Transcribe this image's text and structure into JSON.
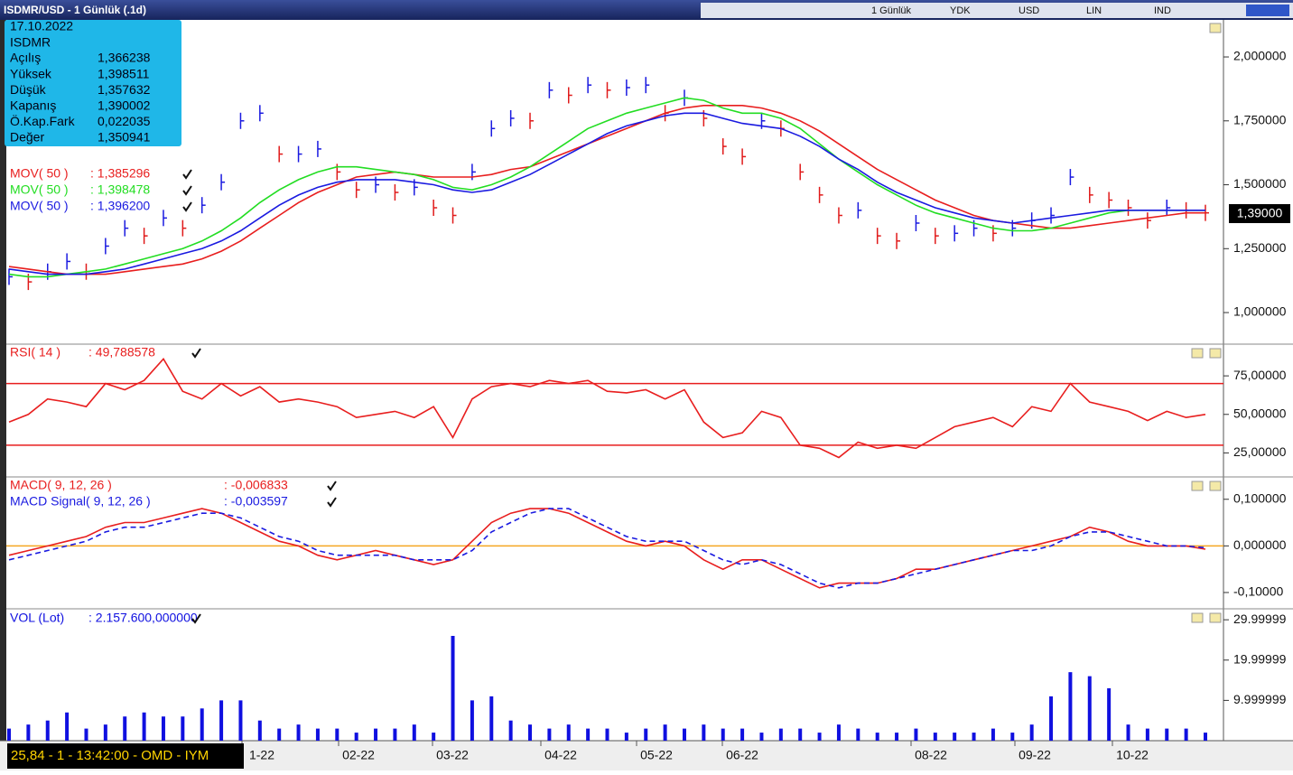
{
  "header": {
    "title": "ISDMR/USD - 1 Günlük (.1d)",
    "toolbar": [
      "1 Günlük",
      "YDK",
      "USD",
      "LIN",
      "IND"
    ]
  },
  "info": {
    "date": "17.10.2022",
    "symbol": "ISDMR",
    "rows": [
      [
        "Açılış",
        "1,366238"
      ],
      [
        "Yüksek",
        "1,398511"
      ],
      [
        "Düşük",
        "1,357632"
      ],
      [
        "Kapanış",
        "1,390002"
      ],
      [
        "Ö.Kap.Fark",
        "0,022035"
      ],
      [
        "Değer",
        "1,350941"
      ]
    ]
  },
  "last_price": "1,39000",
  "status": "25,84 - 1 - 13:42:00 - OMD - IYM",
  "x_labels": [
    "1-22",
    "02-22",
    "03-22",
    "04-22",
    "05-22",
    "06-22",
    "08-22",
    "09-22",
    "10-22"
  ],
  "chart_data": [
    {
      "type": "line",
      "ylim": [
        0.88,
        2.145
      ],
      "yticks": [
        {
          "value": 1,
          "label": "1,000000"
        },
        {
          "value": 1.25,
          "label": "1,250000"
        },
        {
          "value": 1.5,
          "label": "1,500000"
        },
        {
          "value": 1.75,
          "label": "1,750000"
        },
        {
          "value": 2,
          "label": "2,000000"
        }
      ],
      "up_color": "#1a1ae0",
      "down_color": "#e01a1a",
      "series": [
        {
          "style": "bars",
          "values": [
            1.14,
            1.12,
            1.16,
            1.2,
            1.16,
            1.26,
            1.33,
            1.3,
            1.37,
            1.33,
            1.42,
            1.51,
            1.75,
            1.78,
            1.62,
            1.62,
            1.64,
            1.55,
            1.48,
            1.5,
            1.47,
            1.49,
            1.41,
            1.38,
            1.55,
            1.72,
            1.76,
            1.75,
            1.87,
            1.85,
            1.89,
            1.87,
            1.88,
            1.89,
            1.78,
            1.84,
            1.76,
            1.65,
            1.61,
            1.75,
            1.72,
            1.55,
            1.46,
            1.38,
            1.4,
            1.3,
            1.28,
            1.35,
            1.3,
            1.31,
            1.33,
            1.31,
            1.33,
            1.36,
            1.38,
            1.53,
            1.46,
            1.44,
            1.41,
            1.36,
            1.41,
            1.4,
            1.39
          ]
        },
        {
          "name": "MOV( 50 )",
          "legend_value": ": 1,385296",
          "color": "#e81e1e",
          "values": [
            1.18,
            1.17,
            1.16,
            1.15,
            1.15,
            1.15,
            1.16,
            1.17,
            1.18,
            1.19,
            1.21,
            1.24,
            1.28,
            1.33,
            1.38,
            1.43,
            1.47,
            1.5,
            1.53,
            1.54,
            1.55,
            1.54,
            1.53,
            1.53,
            1.53,
            1.54,
            1.56,
            1.57,
            1.6,
            1.63,
            1.66,
            1.69,
            1.72,
            1.75,
            1.78,
            1.8,
            1.81,
            1.81,
            1.81,
            1.8,
            1.78,
            1.75,
            1.71,
            1.66,
            1.61,
            1.56,
            1.52,
            1.48,
            1.44,
            1.41,
            1.38,
            1.36,
            1.35,
            1.34,
            1.33,
            1.33,
            1.34,
            1.35,
            1.36,
            1.37,
            1.38,
            1.39,
            1.39
          ]
        },
        {
          "name": "MOV( 50 )",
          "legend_value": ": 1,398478",
          "color": "#22dd22",
          "values": [
            1.15,
            1.14,
            1.14,
            1.15,
            1.16,
            1.17,
            1.19,
            1.21,
            1.23,
            1.25,
            1.28,
            1.32,
            1.37,
            1.43,
            1.48,
            1.52,
            1.55,
            1.57,
            1.57,
            1.56,
            1.55,
            1.54,
            1.52,
            1.49,
            1.48,
            1.5,
            1.53,
            1.57,
            1.62,
            1.67,
            1.72,
            1.75,
            1.78,
            1.8,
            1.82,
            1.84,
            1.83,
            1.8,
            1.78,
            1.78,
            1.76,
            1.72,
            1.66,
            1.6,
            1.55,
            1.5,
            1.46,
            1.42,
            1.39,
            1.37,
            1.35,
            1.33,
            1.32,
            1.32,
            1.33,
            1.35,
            1.37,
            1.39,
            1.4,
            1.4,
            1.4,
            1.4,
            1.4
          ]
        },
        {
          "name": "MOV( 50 )",
          "legend_value": ": 1,396200",
          "color": "#1a1ae0",
          "values": [
            1.17,
            1.16,
            1.15,
            1.15,
            1.15,
            1.16,
            1.17,
            1.19,
            1.21,
            1.23,
            1.25,
            1.28,
            1.32,
            1.37,
            1.42,
            1.46,
            1.49,
            1.51,
            1.52,
            1.52,
            1.52,
            1.51,
            1.5,
            1.48,
            1.47,
            1.48,
            1.51,
            1.54,
            1.58,
            1.62,
            1.66,
            1.7,
            1.73,
            1.75,
            1.77,
            1.78,
            1.78,
            1.76,
            1.74,
            1.73,
            1.72,
            1.69,
            1.65,
            1.6,
            1.56,
            1.51,
            1.47,
            1.44,
            1.41,
            1.39,
            1.37,
            1.36,
            1.35,
            1.36,
            1.37,
            1.38,
            1.39,
            1.4,
            1.4,
            1.4,
            1.4,
            1.4,
            1.4
          ]
        }
      ]
    },
    {
      "type": "line",
      "ylim": [
        10,
        95
      ],
      "yticks": [
        {
          "value": 25,
          "label": "25,00000"
        },
        {
          "value": 50,
          "label": "50,00000"
        },
        {
          "value": 75,
          "label": "75,00000"
        }
      ],
      "hlines": [
        70,
        30
      ],
      "hline_color": "#e81e1e",
      "series": [
        {
          "name": "RSI( 14 )",
          "legend_value": ": 49,788578",
          "color": "#e81e1e",
          "values": [
            45,
            50,
            60,
            58,
            55,
            70,
            66,
            72,
            86,
            65,
            60,
            70,
            62,
            68,
            58,
            60,
            58,
            55,
            48,
            50,
            52,
            48,
            55,
            35,
            60,
            68,
            70,
            68,
            72,
            70,
            72,
            65,
            64,
            66,
            60,
            66,
            45,
            35,
            38,
            52,
            48,
            30,
            28,
            22,
            32,
            28,
            30,
            28,
            35,
            42,
            45,
            48,
            42,
            55,
            52,
            70,
            58,
            55,
            52,
            46,
            52,
            48,
            50
          ]
        }
      ]
    },
    {
      "type": "line",
      "ylim": [
        -0.133,
        0.146
      ],
      "yticks": [
        {
          "value": -0.1,
          "label": "-0,10000"
        },
        {
          "value": 0,
          "label": "0,000000"
        },
        {
          "value": 0.1,
          "label": "0,100000"
        }
      ],
      "hlines": [
        0
      ],
      "hline_color": "#f5a623",
      "series": [
        {
          "name": "MACD( 9, 12, 26 )",
          "legend_value": ": -0,006833",
          "color": "#e81e1e",
          "values": [
            -0.02,
            -0.01,
            0.0,
            0.01,
            0.02,
            0.04,
            0.05,
            0.05,
            0.06,
            0.07,
            0.08,
            0.07,
            0.05,
            0.03,
            0.01,
            0.0,
            -0.02,
            -0.03,
            -0.02,
            -0.01,
            -0.02,
            -0.03,
            -0.04,
            -0.03,
            0.01,
            0.05,
            0.07,
            0.08,
            0.08,
            0.07,
            0.05,
            0.03,
            0.01,
            0.0,
            0.01,
            0.0,
            -0.03,
            -0.05,
            -0.03,
            -0.03,
            -0.05,
            -0.07,
            -0.09,
            -0.08,
            -0.08,
            -0.08,
            -0.07,
            -0.05,
            -0.05,
            -0.04,
            -0.03,
            -0.02,
            -0.01,
            0.0,
            0.01,
            0.02,
            0.04,
            0.03,
            0.01,
            0.0,
            0.0,
            0.0,
            -0.007
          ]
        },
        {
          "name": "MACD Signal( 9, 12, 26 )",
          "legend_value": ": -0,003597",
          "color": "#1a1ae0",
          "dashed": true,
          "values": [
            -0.03,
            -0.02,
            -0.01,
            0.0,
            0.01,
            0.03,
            0.04,
            0.04,
            0.05,
            0.06,
            0.07,
            0.07,
            0.06,
            0.04,
            0.02,
            0.01,
            -0.01,
            -0.02,
            -0.02,
            -0.02,
            -0.02,
            -0.03,
            -0.03,
            -0.03,
            -0.01,
            0.03,
            0.05,
            0.07,
            0.08,
            0.08,
            0.06,
            0.04,
            0.02,
            0.01,
            0.01,
            0.01,
            -0.01,
            -0.03,
            -0.04,
            -0.03,
            -0.04,
            -0.06,
            -0.08,
            -0.09,
            -0.08,
            -0.08,
            -0.07,
            -0.06,
            -0.05,
            -0.04,
            -0.03,
            -0.02,
            -0.01,
            -0.01,
            0.0,
            0.02,
            0.03,
            0.03,
            0.02,
            0.01,
            0.0,
            0.0,
            -0.004
          ]
        }
      ]
    },
    {
      "type": "bar",
      "ylim": [
        0,
        32.5
      ],
      "yticks": [
        9.999999,
        19.99999,
        29.99999
      ],
      "series": [
        {
          "name": "VOL (Lot)",
          "legend_value": ": 2.157.600,000000",
          "color": "#1010e0",
          "values": [
            3,
            4,
            5,
            7,
            3,
            4,
            6,
            7,
            6,
            6,
            8,
            10,
            10,
            5,
            3,
            4,
            3,
            3,
            2,
            3,
            3,
            4,
            2,
            26,
            10,
            11,
            5,
            4,
            3,
            4,
            3,
            3,
            2,
            3,
            4,
            3,
            4,
            3,
            3,
            2,
            3,
            3,
            2,
            4,
            3,
            2,
            2,
            3,
            2,
            2,
            2,
            3,
            2,
            4,
            11,
            17,
            16,
            13,
            4,
            3,
            3,
            3,
            2
          ]
        }
      ]
    }
  ]
}
